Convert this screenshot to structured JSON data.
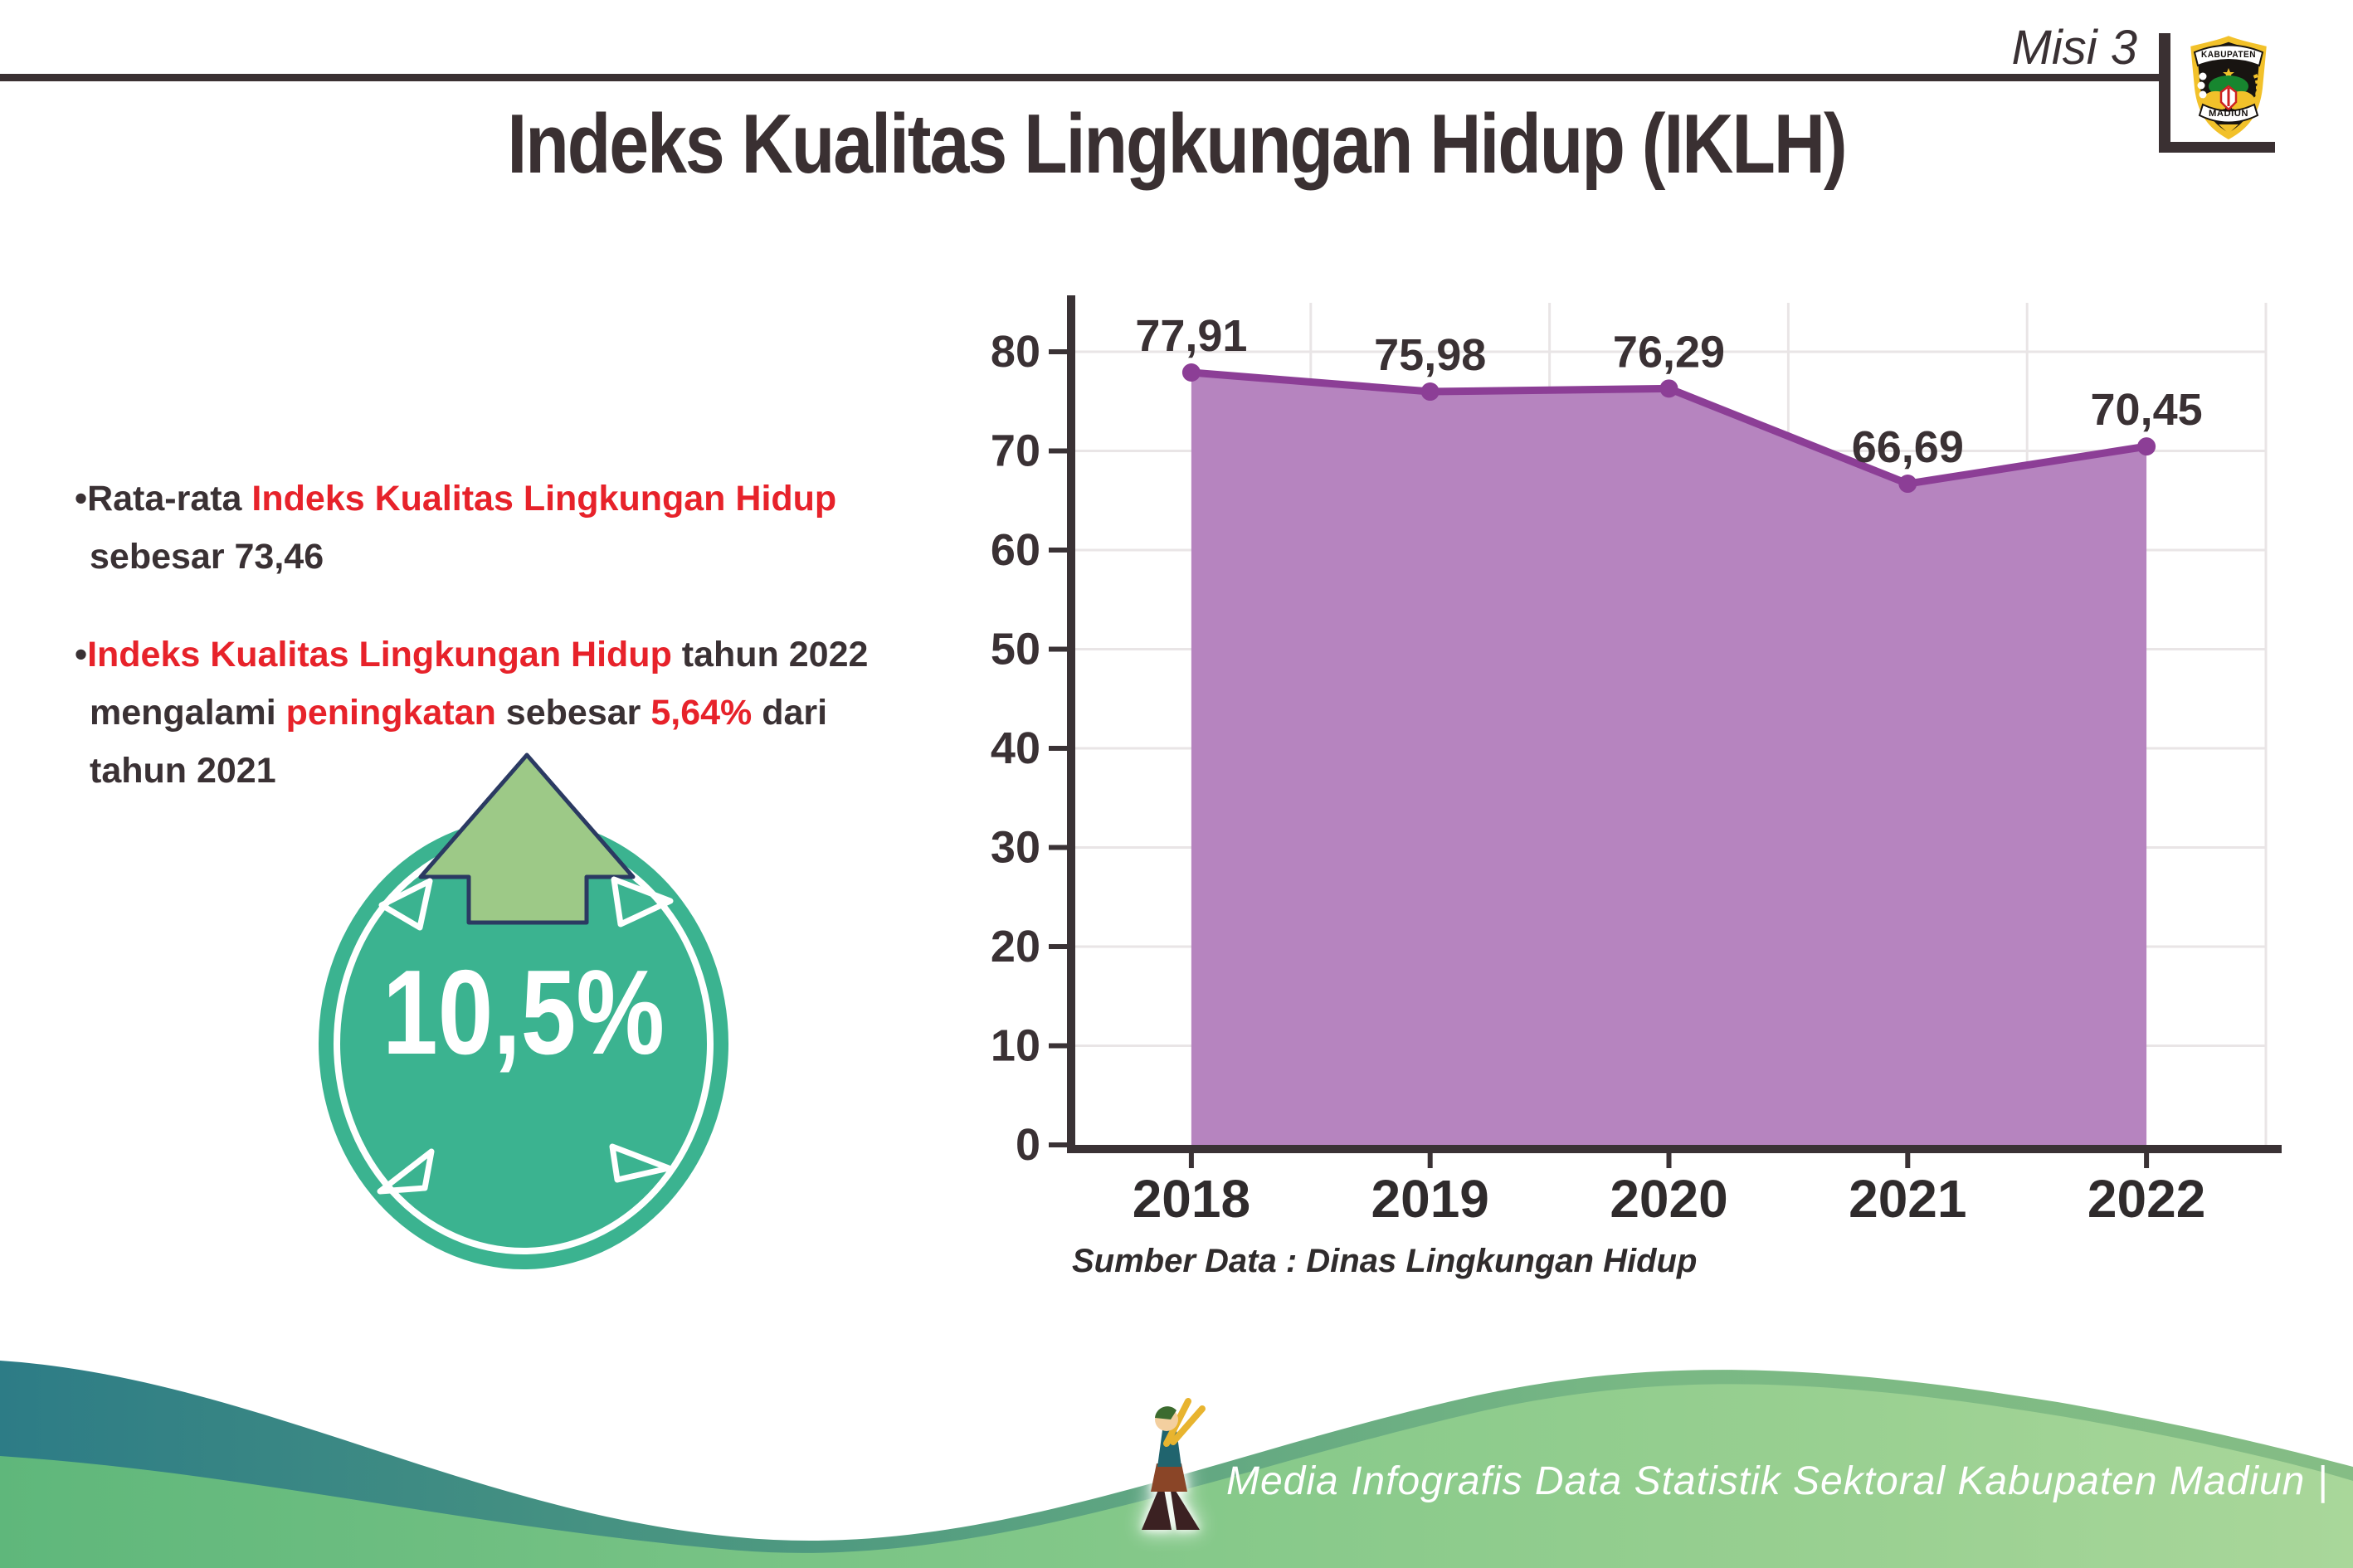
{
  "header": {
    "misi_label": "Misi 3",
    "logo": {
      "top_banner": "KABUPATEN",
      "bottom_banner": "MADIUN"
    }
  },
  "title": "Indeks Kualitas Lingkungan Hidup (IKLH)",
  "bullets": {
    "dot": "•",
    "b1_black1": "Rata-rata ",
    "b1_red1": "Indeks Kualitas Lingkungan Hidup",
    "b1_line2": "sebesar 73,46",
    "b2_red1": "Indeks Kualitas Lingkungan Hidup",
    "b2_black1": " tahun 2022",
    "b2_l2_black1": "mengalami ",
    "b2_l2_red1": "peningkatan",
    "b2_l2_black2": " sebesar ",
    "b2_l2_red2": "5,64%",
    "b2_l2_black3": " dari",
    "b2_line3": "tahun 2021"
  },
  "badge": {
    "value": "10,5%"
  },
  "chart_data": {
    "type": "area",
    "categories": [
      "2018",
      "2019",
      "2020",
      "2021",
      "2022"
    ],
    "values": [
      77.91,
      75.98,
      76.29,
      66.69,
      70.45
    ],
    "value_labels": [
      "77,91",
      "75,98",
      "76,29",
      "66,69",
      "70,45"
    ],
    "title": "",
    "xlabel": "",
    "ylabel": "",
    "ylim": [
      0,
      80
    ],
    "ytick_step": 10,
    "grid": true,
    "legend": false,
    "area_color": "#b684bf",
    "line_color": "#8c3e96",
    "marker_color": "#8c3e96"
  },
  "source_note": "Sumber Data : Dinas Lingkungan Hidup",
  "footer": {
    "credit": "Media Infografis Data Statistik Sektoral Kabupaten Madiun |"
  },
  "colors": {
    "ink": "#3a3134",
    "accent_red": "#e7222a",
    "badge_teal": "#3bb390",
    "arrow_green": "#9dc987",
    "arrow_outline_navy": "#2b3a62",
    "footer_teal": "#2d7c86",
    "footer_green": "#a9d79a"
  }
}
